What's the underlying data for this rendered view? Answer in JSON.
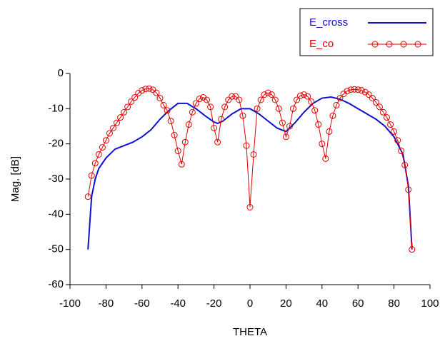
{
  "chart_data": {
    "type": "line",
    "xlabel": "THETA",
    "ylabel": "Mag. [dB]",
    "xlim": [
      -100,
      100
    ],
    "xticks": [
      -100,
      -80,
      -60,
      -40,
      -20,
      0,
      20,
      40,
      60,
      80,
      100
    ],
    "ylim": [
      -60,
      0
    ],
    "yticks": [
      0,
      -10,
      -20,
      -30,
      -40,
      -50,
      -60
    ],
    "grid": false,
    "legend": "top-right",
    "series": [
      {
        "name": "E_cross",
        "color": "#1010d0",
        "marker": "none",
        "x": [
          -90,
          -88,
          -86,
          -84,
          -80,
          -75,
          -70,
          -65,
          -60,
          -55,
          -50,
          -45,
          -40,
          -35,
          -30,
          -25,
          -20,
          -18,
          -15,
          -10,
          -5,
          0,
          5,
          10,
          15,
          20,
          25,
          30,
          35,
          40,
          45,
          50,
          55,
          60,
          65,
          70,
          75,
          80,
          85,
          88,
          90
        ],
        "values": [
          -50,
          -35,
          -30,
          -27,
          -24,
          -21.5,
          -20.5,
          -19.5,
          -18,
          -16,
          -13,
          -10.5,
          -8.5,
          -8.5,
          -10,
          -12,
          -13.8,
          -14.2,
          -13.5,
          -11.5,
          -10,
          -10,
          -11.5,
          -13.5,
          -15.5,
          -16.5,
          -14,
          -11,
          -8.5,
          -7,
          -6.7,
          -7.3,
          -8.5,
          -10,
          -11.5,
          -13,
          -15,
          -18,
          -23,
          -32,
          -50
        ]
      },
      {
        "name": "E_co",
        "color": "#e00000",
        "marker": "circle",
        "x": [
          -90,
          -88,
          -86,
          -84,
          -82,
          -80,
          -78,
          -76,
          -74,
          -72,
          -70,
          -68,
          -66,
          -64,
          -62,
          -60,
          -58,
          -56,
          -54,
          -52,
          -50,
          -48,
          -46,
          -44,
          -42,
          -40,
          -38,
          -36,
          -34,
          -32,
          -30,
          -28,
          -26,
          -24,
          -22,
          -20,
          -18,
          -16,
          -14,
          -12,
          -10,
          -8,
          -6,
          -4,
          -2,
          0,
          2,
          4,
          6,
          8,
          10,
          12,
          14,
          16,
          18,
          20,
          22,
          24,
          26,
          28,
          30,
          32,
          34,
          36,
          38,
          40,
          42,
          44,
          46,
          48,
          50,
          52,
          54,
          56,
          58,
          60,
          62,
          64,
          66,
          68,
          70,
          72,
          74,
          76,
          78,
          80,
          82,
          84,
          86,
          88,
          90
        ],
        "values": [
          -35,
          -29,
          -25.5,
          -23,
          -21,
          -19,
          -17,
          -15.5,
          -14,
          -12.5,
          -11,
          -9.5,
          -8,
          -6.8,
          -5.6,
          -4.8,
          -4.4,
          -4.3,
          -4.6,
          -5.5,
          -7,
          -9,
          -10.5,
          -13.5,
          -17.5,
          -22,
          -25.8,
          -19.5,
          -14.5,
          -11,
          -8.5,
          -7.2,
          -6.8,
          -7.5,
          -9.5,
          -15.5,
          -19.5,
          -13,
          -9.5,
          -7.5,
          -6.5,
          -6.5,
          -7.5,
          -12,
          -20.5,
          -38,
          -23,
          -10,
          -7.5,
          -6,
          -5.5,
          -6,
          -7.5,
          -10,
          -14,
          -18,
          -15,
          -10,
          -7.5,
          -6.3,
          -6,
          -6.5,
          -8,
          -10.5,
          -14.5,
          -20,
          -24.2,
          -16.5,
          -12,
          -9,
          -7,
          -5.8,
          -5,
          -4.6,
          -4.5,
          -4.6,
          -4.8,
          -5.3,
          -6,
          -7,
          -8.2,
          -9.5,
          -11,
          -12.5,
          -14.5,
          -16.5,
          -19,
          -22,
          -26,
          -33,
          -50
        ]
      }
    ]
  }
}
